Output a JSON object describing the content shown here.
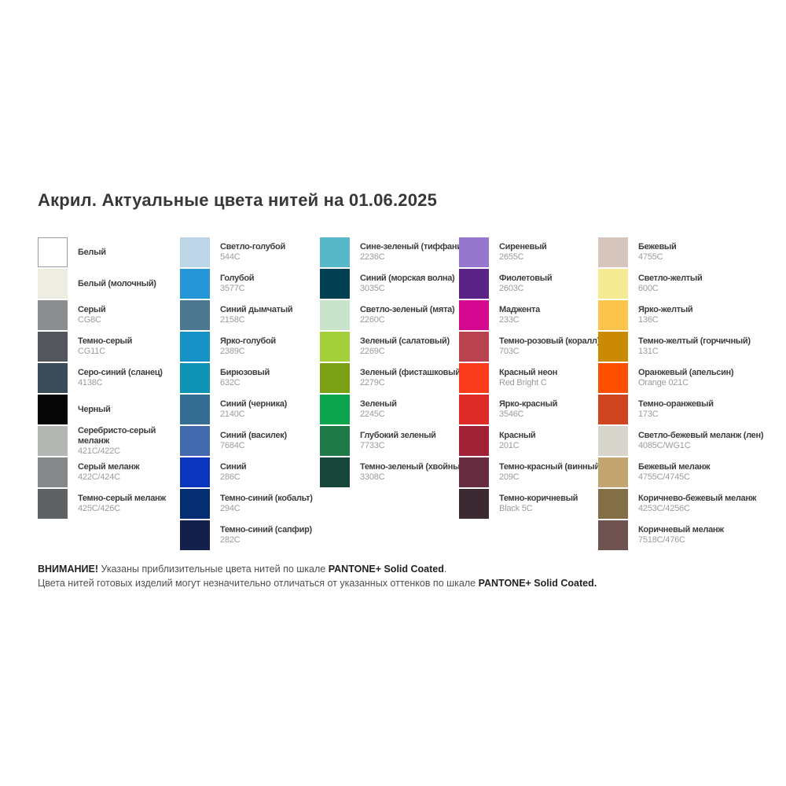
{
  "title": "Акрил. Актуальные цвета нитей на 01.06.2025",
  "columns": [
    {
      "items": [
        {
          "name": "Белый",
          "code": "",
          "hex": "#ffffff",
          "border": true
        },
        {
          "name": "Белый (молочный)",
          "code": "",
          "hex": "#edeee1"
        },
        {
          "name": "Серый",
          "code": "CG8C",
          "hex": "#8b8d8e"
        },
        {
          "name": "Темно-серый",
          "code": "CG11C",
          "hex": "#53565a"
        },
        {
          "name": "Серо-синий (сланец)",
          "code": "4138C",
          "hex": "#3b4c59"
        },
        {
          "name": "Черный",
          "code": "",
          "hex": "#060606"
        },
        {
          "name": "Серебристо-серый\nмеланж",
          "code": "421C/422C",
          "hex": "#b4b6b4"
        },
        {
          "name": "Серый меланж",
          "code": "422C/424C",
          "hex": "#848889"
        },
        {
          "name": "Темно-серый меланж",
          "code": "425C/426C",
          "hex": "#5f6265"
        }
      ]
    },
    {
      "items": [
        {
          "name": "Светло-голубой",
          "code": "544C",
          "hex": "#bcd6e8"
        },
        {
          "name": "Голубой",
          "code": "3577C",
          "hex": "#2697d6"
        },
        {
          "name": "Синий дымчатый",
          "code": "2158C",
          "hex": "#4e7892"
        },
        {
          "name": "Ярко-голубой",
          "code": "2389C",
          "hex": "#1691c6"
        },
        {
          "name": "Бирюзовый",
          "code": "632C",
          "hex": "#0f93b5"
        },
        {
          "name": "Синий (черника)",
          "code": "2140C",
          "hex": "#356e92"
        },
        {
          "name": "Синий (василек)",
          "code": "7684C",
          "hex": "#4268ae"
        },
        {
          "name": "Синий",
          "code": "286C",
          "hex": "#0b35bd"
        },
        {
          "name": "Темно-синий (кобальт)",
          "code": "294C",
          "hex": "#042d73"
        },
        {
          "name": "Темно-синий (сапфир)",
          "code": "282C",
          "hex": "#12204b"
        }
      ]
    },
    {
      "items": [
        {
          "name": "Сине-зеленый (тиффани)",
          "code": "2236C",
          "hex": "#57b8c7"
        },
        {
          "name": "Синий (морская волна)",
          "code": "3035C",
          "hex": "#034053"
        },
        {
          "name": "Светло-зеленый (мята)",
          "code": "2260C",
          "hex": "#c8e4cb"
        },
        {
          "name": "Зеленый (салатовый)",
          "code": "2269C",
          "hex": "#a3cf3b"
        },
        {
          "name": "Зеленый (фисташковый)",
          "code": "2279C",
          "hex": "#7ca015"
        },
        {
          "name": "Зеленый",
          "code": "2245C",
          "hex": "#0ca64f"
        },
        {
          "name": "Глубокий зеленый",
          "code": "7733C",
          "hex": "#207a48"
        },
        {
          "name": "Темно-зеленый (хвойный)",
          "code": "3308C",
          "hex": "#184539"
        }
      ]
    },
    {
      "items": [
        {
          "name": "Сиреневый",
          "code": "2655C",
          "hex": "#9577cd"
        },
        {
          "name": "Фиолетовый",
          "code": "2603C",
          "hex": "#5a2487"
        },
        {
          "name": "Маджента",
          "code": "233C",
          "hex": "#d40990"
        },
        {
          "name": "Темно-розовый (коралл)",
          "code": "703C",
          "hex": "#b8434f"
        },
        {
          "name": "Красный неон",
          "code": "Red Bright C",
          "hex": "#fa3b1e"
        },
        {
          "name": "Ярко-красный",
          "code": "3546C",
          "hex": "#df2b28"
        },
        {
          "name": "Красный",
          "code": "201C",
          "hex": "#a02136"
        },
        {
          "name": "Темно-красный (винный)",
          "code": "209C",
          "hex": "#682c40"
        },
        {
          "name": "Темно-коричневый",
          "code": "Black 5C",
          "hex": "#3c2a33"
        }
      ]
    },
    {
      "items": [
        {
          "name": "Бежевый",
          "code": "4755C",
          "hex": "#d5c5bd"
        },
        {
          "name": "Светло-желтый",
          "code": "600C",
          "hex": "#f3ea93"
        },
        {
          "name": "Ярко-желтый",
          "code": "136C",
          "hex": "#fdc54b"
        },
        {
          "name": "Темно-желтый (горчичный)",
          "code": "131C",
          "hex": "#ca8a03"
        },
        {
          "name": "Оранжевый (апельсин)",
          "code": "Orange 021C",
          "hex": "#fc5000"
        },
        {
          "name": "Темно-оранжевый",
          "code": "173C",
          "hex": "#cf4520"
        },
        {
          "name": "Светло-бежевый меланж (лен)",
          "code": "4085C/WG1C",
          "hex": "#d8d5cd"
        },
        {
          "name": "Бежевый меланж",
          "code": "4755C/4745C",
          "hex": "#c3a572"
        },
        {
          "name": "Коричнево-бежевый меланж",
          "code": "4253C/4256C",
          "hex": "#837049"
        },
        {
          "name": "Коричневый меланж",
          "code": "7518C/476C",
          "hex": "#6e5350"
        }
      ]
    }
  ],
  "footer": {
    "warning_label": "ВНИМАНИЕ!",
    "line1_text": "Указаны приблизительные цвета нитей по шкале",
    "pantone_brand_1": "PANTONE+ Solid Coated",
    "line1_period": ".",
    "line2_text": "Цвета нитей готовых изделий могут незначительно отличаться от указанных оттенков по шкале",
    "pantone_brand_2": "PANTONE+ Solid Coated."
  }
}
